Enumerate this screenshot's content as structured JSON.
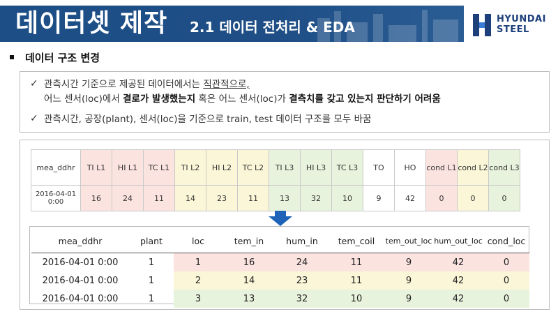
{
  "header": {
    "title": "데이터셋 제작",
    "subtitle": "2.1 데이터 전처리 & EDA",
    "logo_line1": "HYUNDAI",
    "logo_line2": "STEEL",
    "accent": "#1d4f86"
  },
  "section": {
    "heading": "데이터 구조 변경"
  },
  "notes": {
    "check_icon": "check-icon",
    "line1": "관측시간 기준으로 제공된 데이터에서는 ",
    "line1_u": "직관적으로,",
    "line2_a": "어느 센서(loc)에서 ",
    "line2_b": "결로가 발생했는지",
    "line2_c": " 혹은 어느 센서(loc)가 ",
    "line2_d": "결측치를 갖고 있는지 판단하기 어려움",
    "line3": "관측시간, 공장(plant), 센서(loc)을 기준으로 train, test 데이터 구조를 모두 바꿈"
  },
  "wide_table": {
    "headers": [
      "mea_ddhr",
      "TI L1",
      "HI L1",
      "TC L1",
      "TI L2",
      "HI L2",
      "TC L2",
      "TI L3",
      "HI L3",
      "TC L3",
      "TO",
      "HO",
      "cond L1",
      "cond L2",
      "cond L3"
    ],
    "row": [
      "2016-04-01 0:00",
      "16",
      "24",
      "11",
      "14",
      "23",
      "11",
      "13",
      "32",
      "10",
      "9",
      "42",
      "0",
      "0",
      "0"
    ],
    "colors": {
      "pink": "#fbe3e0",
      "yellow": "#fbf6d8",
      "green": "#e7f3dc"
    }
  },
  "arrow_icon": "down-arrow-icon",
  "long_table": {
    "headers": [
      "mea_ddhr",
      "plant",
      "loc",
      "tem_in",
      "hum_in",
      "tem_coil",
      "tem_out_loc",
      "hum_out_loc",
      "cond_loc"
    ],
    "rows": [
      [
        "2016-04-01 0:00",
        "1",
        "1",
        "16",
        "24",
        "11",
        "9",
        "42",
        "0"
      ],
      [
        "2016-04-01 0:00",
        "1",
        "2",
        "14",
        "23",
        "11",
        "9",
        "42",
        "0"
      ],
      [
        "2016-04-01 0:00",
        "1",
        "3",
        "13",
        "32",
        "10",
        "9",
        "42",
        "0"
      ]
    ]
  }
}
